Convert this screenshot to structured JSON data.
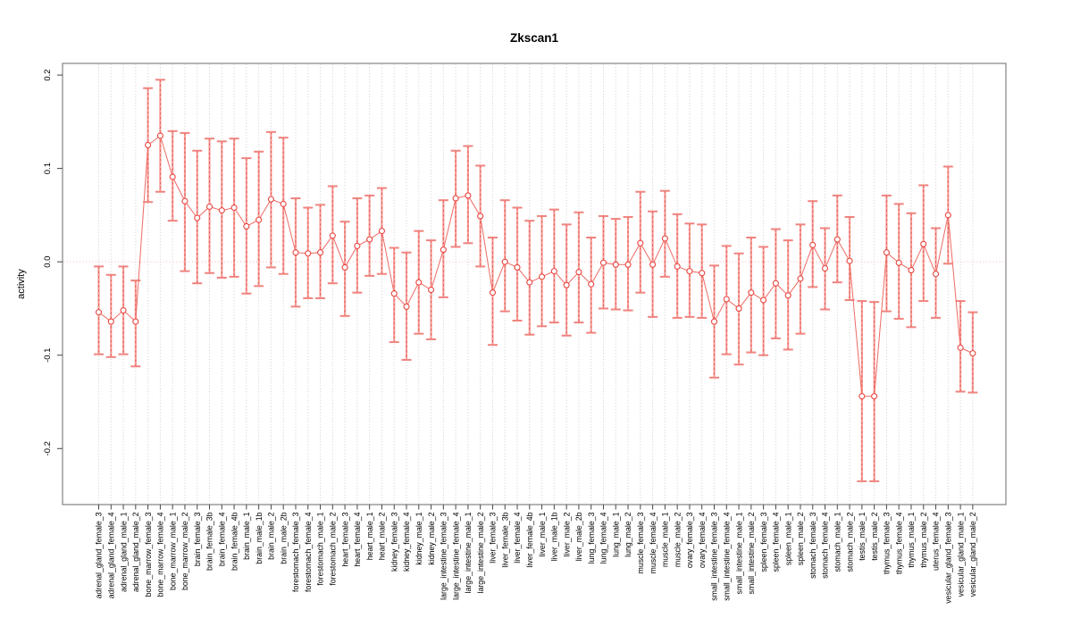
{
  "chart_data": {
    "type": "line",
    "subtype": "points-with-error-bars",
    "title": "Zkscan1",
    "xlabel": "",
    "ylabel": "activity",
    "ylim": [
      -0.26,
      0.2125
    ],
    "grid": "vertical-dotted-per-category",
    "zero_line": true,
    "legend": "none",
    "yticks": [
      {
        "value": 0.2,
        "label": "0.2"
      },
      {
        "value": 0.1,
        "label": "0.1"
      },
      {
        "value": 0.0,
        "label": "0.0"
      },
      {
        "value": -0.1,
        "label": "-0.1"
      },
      {
        "value": -0.2,
        "label": "-0.2"
      }
    ],
    "categories": [
      "adrenal_gland_female_3",
      "adrenal_gland_female_4",
      "adrenal_gland_male_1",
      "adrenal_gland_male_2",
      "bone_marrow_female_3",
      "bone_marrow_female_4",
      "bone_marrow_male_1",
      "bone_marrow_male_2",
      "brain_female_3",
      "brain_female_3b",
      "brain_female_4",
      "brain_female_4b",
      "brain_male_1",
      "brain_male_1b",
      "brain_male_2",
      "brain_male_2b",
      "forestomach_female_3",
      "forestomach_female_4",
      "forestomach_male_1",
      "forestomach_male_2",
      "heart_female_3",
      "heart_female_4",
      "heart_male_1",
      "heart_male_2",
      "kidney_female_3",
      "kidney_female_4",
      "kidney_male_1",
      "kidney_male_2",
      "large_intestine_female_3",
      "large_intestine_female_4",
      "large_intestine_male_1",
      "large_intestine_male_2",
      "liver_female_3",
      "liver_female_3b",
      "liver_female_4",
      "liver_female_4b",
      "liver_male_1",
      "liver_male_1b",
      "liver_male_2",
      "liver_male_2b",
      "lung_female_3",
      "lung_female_4",
      "lung_male_1",
      "lung_male_2",
      "muscle_female_3",
      "muscle_female_4",
      "muscle_male_1",
      "muscle_male_2",
      "ovary_female_3",
      "ovary_female_4",
      "small_intestine_female_3",
      "small_intestine_female_4",
      "small_intestine_male_1",
      "small_intestine_male_2",
      "spleen_female_3",
      "spleen_female_4",
      "spleen_male_1",
      "spleen_male_2",
      "stomach_female_3",
      "stomach_female_4",
      "stomach_male_1",
      "stomach_male_2",
      "testis_male_1",
      "testis_male_2",
      "thymus_female_3",
      "thymus_female_4",
      "thymus_male_1",
      "thymus_male_2",
      "uterus_female_4",
      "vesicular_gland_female_3",
      "vesicular_gland_male_1",
      "vesicular_gland_male_2"
    ],
    "series": [
      {
        "name": "activity",
        "values": [
          -0.054,
          -0.064,
          -0.052,
          -0.064,
          0.125,
          0.135,
          0.091,
          0.065,
          0.047,
          0.059,
          0.055,
          0.058,
          0.038,
          0.045,
          0.067,
          0.062,
          0.01,
          0.009,
          0.01,
          0.028,
          -0.006,
          0.017,
          0.024,
          0.033,
          -0.034,
          -0.048,
          -0.022,
          -0.03,
          0.013,
          0.068,
          0.071,
          0.049,
          -0.033,
          0.0,
          -0.006,
          -0.022,
          -0.016,
          -0.01,
          -0.025,
          -0.011,
          -0.024,
          -0.001,
          -0.003,
          -0.003,
          0.02,
          -0.003,
          0.025,
          -0.005,
          -0.01,
          -0.012,
          -0.064,
          -0.04,
          -0.05,
          -0.033,
          -0.041,
          -0.023,
          -0.036,
          -0.018,
          0.018,
          -0.007,
          0.024,
          0.001,
          -0.144,
          -0.144,
          0.01,
          -0.001,
          -0.009,
          0.019,
          -0.013,
          0.05,
          -0.092,
          -0.098
        ],
        "lower": [
          -0.099,
          -0.102,
          -0.099,
          -0.112,
          0.064,
          0.075,
          0.044,
          -0.01,
          -0.023,
          -0.012,
          -0.017,
          -0.016,
          -0.034,
          -0.026,
          -0.006,
          -0.013,
          -0.048,
          -0.039,
          -0.039,
          -0.023,
          -0.058,
          -0.033,
          -0.015,
          -0.013,
          -0.086,
          -0.105,
          -0.077,
          -0.083,
          -0.038,
          0.016,
          0.02,
          -0.005,
          -0.089,
          -0.053,
          -0.063,
          -0.078,
          -0.069,
          -0.065,
          -0.079,
          -0.065,
          -0.076,
          -0.05,
          -0.051,
          -0.052,
          -0.033,
          -0.059,
          -0.016,
          -0.06,
          -0.059,
          -0.06,
          -0.124,
          -0.099,
          -0.11,
          -0.097,
          -0.1,
          -0.082,
          -0.094,
          -0.077,
          -0.027,
          -0.051,
          -0.022,
          -0.041,
          -0.235,
          -0.235,
          -0.053,
          -0.061,
          -0.07,
          -0.042,
          -0.06,
          -0.002,
          -0.139,
          -0.14
        ],
        "upper": [
          -0.005,
          -0.014,
          -0.005,
          -0.02,
          0.186,
          0.195,
          0.14,
          0.138,
          0.119,
          0.132,
          0.129,
          0.132,
          0.111,
          0.118,
          0.139,
          0.133,
          0.068,
          0.058,
          0.061,
          0.081,
          0.043,
          0.068,
          0.071,
          0.079,
          0.015,
          0.01,
          0.033,
          0.023,
          0.066,
          0.119,
          0.124,
          0.103,
          0.026,
          0.066,
          0.058,
          0.044,
          0.049,
          0.056,
          0.04,
          0.053,
          0.026,
          0.049,
          0.046,
          0.048,
          0.075,
          0.054,
          0.076,
          0.051,
          0.041,
          0.04,
          -0.004,
          0.017,
          0.009,
          0.026,
          0.016,
          0.035,
          0.023,
          0.04,
          0.065,
          0.036,
          0.071,
          0.048,
          -0.042,
          -0.043,
          0.071,
          0.062,
          0.052,
          0.082,
          0.036,
          0.102,
          -0.042,
          -0.054
        ]
      }
    ],
    "colors": {
      "point": "#e8443f",
      "line": "#ef6a64",
      "errorbar_light": "#f5a09b",
      "errorbar_dash": "#e8443f",
      "errorbar_cap": "#f0837e",
      "zero_line": "#f3b5b1",
      "grid": "#c9c9c9",
      "frame": "#8c8c8c",
      "tick": "#444444",
      "text": "#000000",
      "background": "#ffffff"
    }
  }
}
